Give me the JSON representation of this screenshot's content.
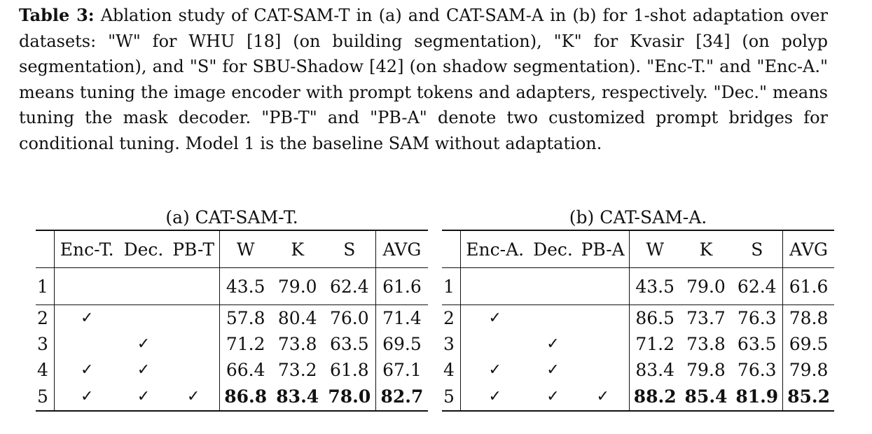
{
  "caption": {
    "label": "Table 3:",
    "text": "Ablation study of CAT-SAM-T in (a) and CAT-SAM-A in (b) for 1-shot adaptation over datasets: \"W\" for WHU [18] (on building segmentation), \"K\" for Kvasir [34] (on polyp segmentation), and \"S\" for SBU-Shadow [42] (on shadow segmentation). \"Enc-T.\" and \"Enc-A.\" means tuning the image encoder with prompt tokens and adapters, respectively. \"Dec.\" means tuning the mask decoder. \"PB-T\" and \"PB-A\" denote two customized prompt bridges for conditional tuning. Model 1 is the baseline SAM without adaptation."
  },
  "tables": {
    "a": {
      "subcaption": "(a) CAT-SAM-T.",
      "headers": [
        "Enc-T.",
        "Dec.",
        "PB-T",
        "W",
        "K",
        "S",
        "AVG"
      ],
      "check_glyph": "✓",
      "rows": [
        {
          "id": "1",
          "enc": "",
          "dec": "",
          "pb": "",
          "w": "43.5",
          "k": "79.0",
          "s": "62.4",
          "avg": "61.6"
        },
        {
          "id": "2",
          "enc": "✓",
          "dec": "",
          "pb": "",
          "w": "57.8",
          "k": "80.4",
          "s": "76.0",
          "avg": "71.4"
        },
        {
          "id": "3",
          "enc": "",
          "dec": "✓",
          "pb": "",
          "w": "71.2",
          "k": "73.8",
          "s": "63.5",
          "avg": "69.5"
        },
        {
          "id": "4",
          "enc": "✓",
          "dec": "✓",
          "pb": "",
          "w": "66.4",
          "k": "73.2",
          "s": "61.8",
          "avg": "67.1"
        },
        {
          "id": "5",
          "enc": "✓",
          "dec": "✓",
          "pb": "✓",
          "w": "86.8",
          "k": "83.4",
          "s": "78.0",
          "avg": "82.7"
        }
      ]
    },
    "b": {
      "subcaption": "(b) CAT-SAM-A.",
      "headers": [
        "Enc-A.",
        "Dec.",
        "PB-A",
        "W",
        "K",
        "S",
        "AVG"
      ],
      "check_glyph": "✓",
      "rows": [
        {
          "id": "1",
          "enc": "",
          "dec": "",
          "pb": "",
          "w": "43.5",
          "k": "79.0",
          "s": "62.4",
          "avg": "61.6"
        },
        {
          "id": "2",
          "enc": "✓",
          "dec": "",
          "pb": "",
          "w": "86.5",
          "k": "73.7",
          "s": "76.3",
          "avg": "78.8"
        },
        {
          "id": "3",
          "enc": "",
          "dec": "✓",
          "pb": "",
          "w": "71.2",
          "k": "73.8",
          "s": "63.5",
          "avg": "69.5"
        },
        {
          "id": "4",
          "enc": "✓",
          "dec": "✓",
          "pb": "",
          "w": "83.4",
          "k": "79.8",
          "s": "76.3",
          "avg": "79.8"
        },
        {
          "id": "5",
          "enc": "✓",
          "dec": "✓",
          "pb": "✓",
          "w": "88.2",
          "k": "85.4",
          "s": "81.9",
          "avg": "85.2"
        }
      ]
    }
  }
}
